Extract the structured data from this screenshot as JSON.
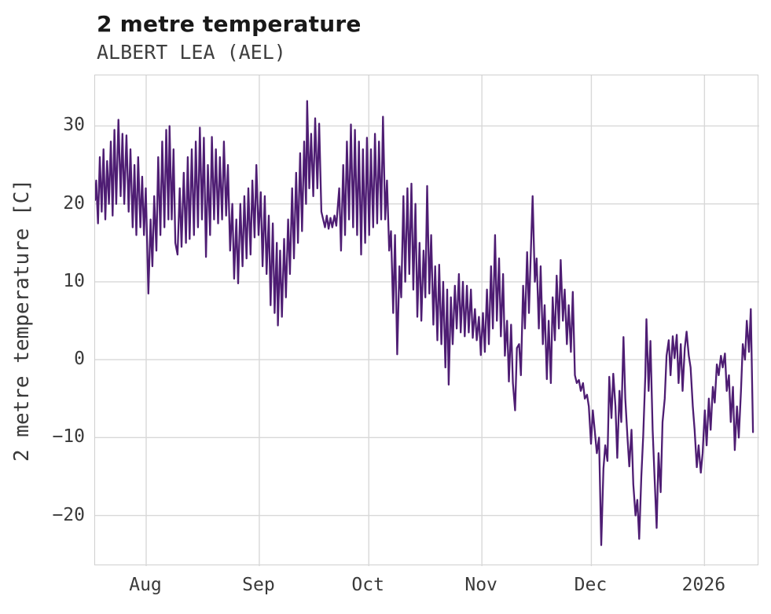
{
  "header": {
    "title": "2 metre temperature",
    "subtitle": "ALBERT LEA (AEL)"
  },
  "colors": {
    "line": "#4e1d73",
    "grid": "#d8d8d8",
    "plot_border": "#cfcfcf",
    "title_text": "#191919",
    "subtitle_text": "#3f3f3f",
    "tick_text": "#3a3a3a",
    "background": "#ffffff"
  },
  "chart_data": {
    "type": "line",
    "title": "2 metre temperature",
    "subtitle": "ALBERT LEA (AEL)",
    "xlabel": "",
    "ylabel": "2 metre temperature [C]",
    "grid": true,
    "legend": "none",
    "line_color": "#4e1d73",
    "xlim": [
      0,
      182
    ],
    "ylim": [
      -26.5,
      36.5
    ],
    "y_ticks": [
      30,
      20,
      10,
      0,
      -10,
      -20
    ],
    "y_tick_labels": [
      "30",
      "20",
      "10",
      "0",
      "−10",
      "−20"
    ],
    "x_ticks": {
      "positions": [
        14,
        45,
        75,
        106,
        136,
        167
      ],
      "labels": [
        "Aug",
        "Sep",
        "Oct",
        "Nov",
        "Dec",
        "2026"
      ]
    },
    "x_unit": "days from start of shown period (mid-July) to mid-January 2026; values estimated from plot",
    "points": [
      [
        0,
        20.5
      ],
      [
        0.3,
        23
      ],
      [
        0.8,
        17.5
      ],
      [
        1.3,
        26
      ],
      [
        1.8,
        19
      ],
      [
        2.3,
        27
      ],
      [
        2.8,
        18
      ],
      [
        3.3,
        25.5
      ],
      [
        3.8,
        20
      ],
      [
        4.3,
        28
      ],
      [
        4.8,
        18.5
      ],
      [
        5.3,
        29.5
      ],
      [
        5.8,
        20
      ],
      [
        6.4,
        30.8
      ],
      [
        7,
        21
      ],
      [
        7.5,
        29
      ],
      [
        8,
        20
      ],
      [
        8.6,
        28.8
      ],
      [
        9.2,
        19
      ],
      [
        9.7,
        27
      ],
      [
        10.3,
        17
      ],
      [
        10.8,
        25
      ],
      [
        11.3,
        16
      ],
      [
        11.8,
        26
      ],
      [
        12.4,
        17
      ],
      [
        12.9,
        23.5
      ],
      [
        13.4,
        16
      ],
      [
        13.9,
        22
      ],
      [
        14.6,
        8.5
      ],
      [
        15.2,
        18
      ],
      [
        15.7,
        12
      ],
      [
        16.2,
        21
      ],
      [
        16.8,
        14
      ],
      [
        17.3,
        26
      ],
      [
        17.9,
        16
      ],
      [
        18.4,
        28
      ],
      [
        19,
        17
      ],
      [
        19.5,
        29.5
      ],
      [
        20.1,
        18
      ],
      [
        20.4,
        30
      ],
      [
        21,
        18
      ],
      [
        21.5,
        27
      ],
      [
        22,
        15
      ],
      [
        22.6,
        13.5
      ],
      [
        23.2,
        22
      ],
      [
        23.7,
        14.5
      ],
      [
        24.3,
        24
      ],
      [
        24.9,
        15
      ],
      [
        25.4,
        26
      ],
      [
        25.9,
        15.5
      ],
      [
        26.5,
        27
      ],
      [
        27.1,
        16
      ],
      [
        27.6,
        28
      ],
      [
        28.2,
        17
      ],
      [
        28.7,
        29.8
      ],
      [
        29.3,
        18
      ],
      [
        29.8,
        28.5
      ],
      [
        30.4,
        13.2
      ],
      [
        30.9,
        25
      ],
      [
        31.5,
        16
      ],
      [
        32,
        28.6
      ],
      [
        32.6,
        18
      ],
      [
        33.1,
        27
      ],
      [
        33.7,
        17.5
      ],
      [
        34.2,
        26
      ],
      [
        34.8,
        18
      ],
      [
        35.3,
        28
      ],
      [
        35.9,
        18.5
      ],
      [
        36.4,
        25
      ],
      [
        37,
        14
      ],
      [
        37.6,
        20
      ],
      [
        38.1,
        10.4
      ],
      [
        38.7,
        18
      ],
      [
        39.2,
        9.8
      ],
      [
        39.8,
        20
      ],
      [
        40.4,
        12
      ],
      [
        40.9,
        21
      ],
      [
        41.5,
        13
      ],
      [
        42,
        22
      ],
      [
        42.6,
        13.5
      ],
      [
        43.1,
        23
      ],
      [
        43.7,
        15.7
      ],
      [
        44.2,
        25
      ],
      [
        44.8,
        16
      ],
      [
        45.4,
        21.5
      ],
      [
        45.9,
        12
      ],
      [
        46.5,
        21
      ],
      [
        47,
        11
      ],
      [
        47.6,
        18.5
      ],
      [
        48.1,
        7
      ],
      [
        48.7,
        17.5
      ],
      [
        49.2,
        6
      ],
      [
        49.8,
        15
      ],
      [
        50.1,
        4.4
      ],
      [
        50.7,
        14
      ],
      [
        51.2,
        5.5
      ],
      [
        51.8,
        15.5
      ],
      [
        52.3,
        8
      ],
      [
        52.9,
        18
      ],
      [
        53.4,
        11
      ],
      [
        54,
        22
      ],
      [
        54.5,
        13
      ],
      [
        55.1,
        24
      ],
      [
        55.6,
        15
      ],
      [
        56.2,
        26.5
      ],
      [
        56.7,
        16.5
      ],
      [
        57.3,
        28
      ],
      [
        57.8,
        20
      ],
      [
        58.1,
        33.2
      ],
      [
        58.7,
        22
      ],
      [
        59.2,
        29
      ],
      [
        59.8,
        21
      ],
      [
        60.3,
        31
      ],
      [
        60.9,
        22
      ],
      [
        61.4,
        30.3
      ],
      [
        62,
        19
      ],
      [
        62.5,
        18
      ],
      [
        63,
        17
      ],
      [
        63.5,
        18.5
      ],
      [
        64,
        16.8
      ],
      [
        64.5,
        18.2
      ],
      [
        65,
        17
      ],
      [
        65.6,
        18.5
      ],
      [
        66.1,
        17.2
      ],
      [
        66.9,
        22
      ],
      [
        67.4,
        14
      ],
      [
        68,
        25
      ],
      [
        68.5,
        16
      ],
      [
        69,
        28
      ],
      [
        69.6,
        18
      ],
      [
        70.1,
        30.2
      ],
      [
        70.7,
        17
      ],
      [
        71.2,
        29.5
      ],
      [
        71.8,
        16
      ],
      [
        72.3,
        28
      ],
      [
        72.9,
        13.5
      ],
      [
        73.4,
        27
      ],
      [
        74,
        15
      ],
      [
        74.5,
        28.5
      ],
      [
        75.1,
        16
      ],
      [
        75.6,
        27
      ],
      [
        76.2,
        17
      ],
      [
        76.7,
        29
      ],
      [
        77.3,
        17.5
      ],
      [
        77.8,
        28
      ],
      [
        78.4,
        18
      ],
      [
        78.9,
        31.2
      ],
      [
        79.5,
        18
      ],
      [
        80,
        23
      ],
      [
        80.6,
        14
      ],
      [
        81.1,
        16.5
      ],
      [
        81.7,
        6
      ],
      [
        82.2,
        16
      ],
      [
        82.8,
        0.7
      ],
      [
        83.4,
        12
      ],
      [
        83.9,
        8
      ],
      [
        84.5,
        21
      ],
      [
        85,
        10
      ],
      [
        85.6,
        22
      ],
      [
        86.1,
        11
      ],
      [
        86.7,
        22.6
      ],
      [
        87.2,
        9
      ],
      [
        87.8,
        20
      ],
      [
        88.3,
        5.5
      ],
      [
        88.9,
        15
      ],
      [
        89.4,
        5
      ],
      [
        90,
        14
      ],
      [
        90.5,
        8
      ],
      [
        91,
        22.3
      ],
      [
        91.6,
        8.5
      ],
      [
        92.1,
        16
      ],
      [
        92.7,
        4.5
      ],
      [
        93.2,
        12
      ],
      [
        93.8,
        2.5
      ],
      [
        94.3,
        12.2
      ],
      [
        94.9,
        2
      ],
      [
        95.4,
        10
      ],
      [
        96,
        -1
      ],
      [
        96.5,
        9
      ],
      [
        96.9,
        -3.2
      ],
      [
        97.5,
        8
      ],
      [
        98,
        2
      ],
      [
        98.6,
        9.5
      ],
      [
        99.1,
        4
      ],
      [
        99.7,
        11
      ],
      [
        100.2,
        3.5
      ],
      [
        100.8,
        10
      ],
      [
        101.3,
        3
      ],
      [
        101.9,
        9.5
      ],
      [
        102.4,
        3.5
      ],
      [
        103,
        9
      ],
      [
        103.5,
        2.8
      ],
      [
        104.1,
        6.5
      ],
      [
        104.6,
        2.5
      ],
      [
        105.2,
        5.5
      ],
      [
        105.7,
        0.6
      ],
      [
        106.3,
        6
      ],
      [
        106.8,
        1
      ],
      [
        107.4,
        9
      ],
      [
        107.9,
        2
      ],
      [
        108.5,
        12
      ],
      [
        109,
        4
      ],
      [
        109.6,
        16
      ],
      [
        110.1,
        5
      ],
      [
        110.7,
        13
      ],
      [
        111.2,
        3
      ],
      [
        111.8,
        11
      ],
      [
        112.3,
        0.5
      ],
      [
        112.9,
        5
      ],
      [
        113.4,
        -2.8
      ],
      [
        114,
        4.5
      ],
      [
        114.5,
        -3
      ],
      [
        115.1,
        -6.5
      ],
      [
        115.6,
        1.5
      ],
      [
        116.2,
        2
      ],
      [
        116.7,
        -2
      ],
      [
        117.3,
        9.5
      ],
      [
        117.8,
        4
      ],
      [
        118.4,
        13.8
      ],
      [
        118.9,
        6
      ],
      [
        119.5,
        15
      ],
      [
        119.9,
        21
      ],
      [
        120.5,
        10
      ],
      [
        121,
        13
      ],
      [
        121.6,
        4
      ],
      [
        122.1,
        12
      ],
      [
        122.7,
        2
      ],
      [
        123.2,
        7
      ],
      [
        123.8,
        -2.5
      ],
      [
        124.3,
        5
      ],
      [
        124.9,
        -3
      ],
      [
        125.4,
        8
      ],
      [
        126,
        2.5
      ],
      [
        126.5,
        10.8
      ],
      [
        127.1,
        4
      ],
      [
        127.6,
        12.8
      ],
      [
        128.2,
        5
      ],
      [
        128.7,
        9
      ],
      [
        129.3,
        2
      ],
      [
        129.8,
        7
      ],
      [
        130.4,
        1
      ],
      [
        130.9,
        8.7
      ],
      [
        131.5,
        -2
      ],
      [
        132,
        -3
      ],
      [
        132.6,
        -2.6
      ],
      [
        133.1,
        -4
      ],
      [
        133.7,
        -3
      ],
      [
        134.2,
        -5
      ],
      [
        134.8,
        -4.5
      ],
      [
        135.3,
        -6
      ],
      [
        135.9,
        -10.8
      ],
      [
        136.4,
        -6.5
      ],
      [
        137,
        -9.5
      ],
      [
        137.5,
        -12
      ],
      [
        138.1,
        -10
      ],
      [
        138.7,
        -23.8
      ],
      [
        139.3,
        -14
      ],
      [
        139.8,
        -11
      ],
      [
        140.4,
        -13
      ],
      [
        140.9,
        -2.2
      ],
      [
        141.5,
        -7.5
      ],
      [
        142,
        -1.8
      ],
      [
        142.6,
        -6
      ],
      [
        143.1,
        -12.6
      ],
      [
        143.7,
        -4
      ],
      [
        144.2,
        -8
      ],
      [
        144.8,
        2.9
      ],
      [
        145.3,
        -5
      ],
      [
        145.9,
        -10
      ],
      [
        146.4,
        -13.7
      ],
      [
        147,
        -9
      ],
      [
        147.5,
        -16
      ],
      [
        148.1,
        -20
      ],
      [
        148.6,
        -18
      ],
      [
        149.1,
        -23
      ],
      [
        149.7,
        -15
      ],
      [
        150.2,
        -9.8
      ],
      [
        150.8,
        -2
      ],
      [
        151.1,
        5.2
      ],
      [
        151.7,
        -4
      ],
      [
        152.2,
        2.4
      ],
      [
        152.8,
        -9
      ],
      [
        153.3,
        -15
      ],
      [
        153.9,
        -21.6
      ],
      [
        154.4,
        -12
      ],
      [
        155,
        -17
      ],
      [
        155.5,
        -8
      ],
      [
        156.1,
        -5
      ],
      [
        156.6,
        0.5
      ],
      [
        157.2,
        2.5
      ],
      [
        157.7,
        -2
      ],
      [
        158.3,
        3
      ],
      [
        158.8,
        0.2
      ],
      [
        159.4,
        3.2
      ],
      [
        159.9,
        -3
      ],
      [
        160.5,
        2
      ],
      [
        161,
        -4
      ],
      [
        161.6,
        1.5
      ],
      [
        162.1,
        3.6
      ],
      [
        162.7,
        0.5
      ],
      [
        163.2,
        -1
      ],
      [
        163.8,
        -6
      ],
      [
        164.3,
        -9
      ],
      [
        164.9,
        -13.8
      ],
      [
        165.4,
        -11
      ],
      [
        166,
        -14.5
      ],
      [
        166.5,
        -12
      ],
      [
        167.1,
        -6.5
      ],
      [
        167.6,
        -11
      ],
      [
        168.2,
        -5
      ],
      [
        168.7,
        -9
      ],
      [
        169.3,
        -3.5
      ],
      [
        169.8,
        -5.5
      ],
      [
        170.4,
        -0.6
      ],
      [
        170.9,
        -2
      ],
      [
        171.5,
        0.5
      ],
      [
        172,
        -1
      ],
      [
        172.6,
        0.8
      ],
      [
        173.1,
        -4
      ],
      [
        173.7,
        -2
      ],
      [
        174.2,
        -8
      ],
      [
        174.8,
        -3.5
      ],
      [
        175.3,
        -11.6
      ],
      [
        175.9,
        -6
      ],
      [
        176.4,
        -10
      ],
      [
        177,
        -4
      ],
      [
        177.5,
        2
      ],
      [
        178.1,
        0
      ],
      [
        178.6,
        5
      ],
      [
        179.2,
        1
      ],
      [
        179.7,
        6.5
      ],
      [
        180.3,
        -9.3
      ]
    ]
  }
}
